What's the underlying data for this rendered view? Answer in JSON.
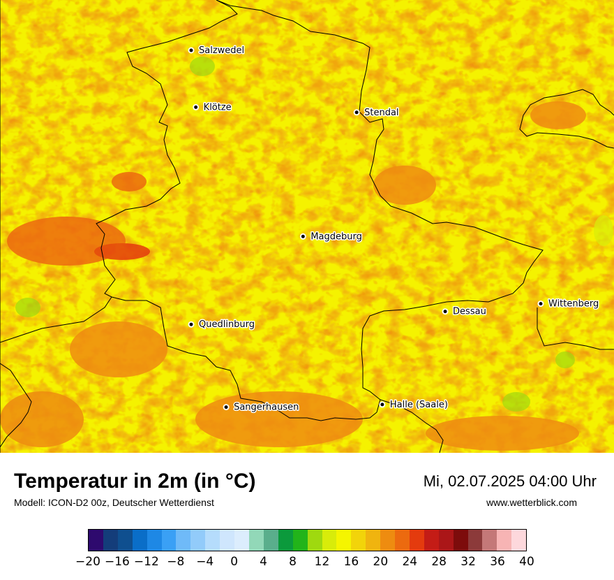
{
  "map": {
    "cities": [
      {
        "name": "Salzwedel",
        "lon": 11.15,
        "lat": 52.85
      },
      {
        "name": "Klötze",
        "lon": 11.17,
        "lat": 52.63
      },
      {
        "name": "Stendal",
        "lon": 11.86,
        "lat": 52.61
      },
      {
        "name": "Magdeburg",
        "lon": 11.63,
        "lat": 52.13
      },
      {
        "name": "Dessau",
        "lon": 12.24,
        "lat": 51.84
      },
      {
        "name": "Wittenberg",
        "lon": 12.65,
        "lat": 51.87
      },
      {
        "name": "Quedlinburg",
        "lon": 11.15,
        "lat": 51.79
      },
      {
        "name": "Sangerhausen",
        "lon": 11.3,
        "lat": 51.47
      },
      {
        "name": "Halle (Saale)",
        "lon": 11.97,
        "lat": 51.48
      }
    ]
  },
  "footer": {
    "title": "Temperatur in 2m (in °C)",
    "subtitle": "Modell: ICON-D2 00z, Deutscher Wetterdienst",
    "datetime": "Mi, 02.07.2025 04:00 Uhr",
    "site": "www.wetterblick.com"
  },
  "legend": {
    "colors": [
      "#2e0a6e",
      "#143d7a",
      "#0f4f8f",
      "#0a6ec8",
      "#1e88e5",
      "#3aa0f5",
      "#6fbaf8",
      "#92cbfa",
      "#b5dcfc",
      "#cfe6fd",
      "#dcedfd",
      "#92d8b8",
      "#5aae8c",
      "#0b9a3c",
      "#22b41a",
      "#9fd90f",
      "#d8ec0a",
      "#f5f500",
      "#f2d40a",
      "#f0b40f",
      "#ee8c10",
      "#ec6a0f",
      "#e43b0e",
      "#c41c16",
      "#ab1618",
      "#7d0c0c",
      "#8c3a3a",
      "#c47878",
      "#f7b4b4",
      "#fdd8dc"
    ],
    "ticks": [
      "−20",
      "−16",
      "−12",
      "−8",
      "−4",
      "0",
      "4",
      "8",
      "12",
      "16",
      "20",
      "24",
      "28",
      "32",
      "36",
      "40"
    ]
  }
}
